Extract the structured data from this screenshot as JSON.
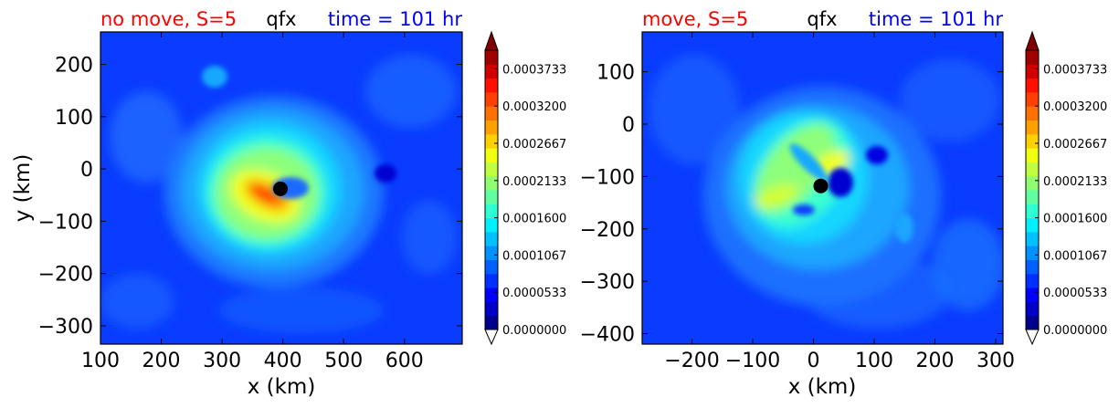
{
  "colors": {
    "title_left": "#ff0000",
    "title_center": "#000000",
    "title_right": "#0000ff",
    "background_field": "#0a3cff"
  },
  "chart_data": [
    {
      "type": "contourf",
      "title_left": "no move, S=5",
      "title_center": "qfx",
      "title_right": "time = 101 hr",
      "xlabel": "x (km)",
      "ylabel": "y (km)",
      "xlim": [
        100,
        695
      ],
      "ylim": [
        -335,
        262
      ],
      "xticks": [
        100,
        200,
        300,
        400,
        500,
        600
      ],
      "yticks": [
        200,
        100,
        0,
        -100,
        -200,
        -300
      ],
      "xtick_labels": [
        "100",
        "200",
        "300",
        "400",
        "500",
        "600"
      ],
      "ytick_labels": [
        "200",
        "100",
        "0",
        "−100",
        "−200",
        "−300"
      ],
      "center_marker": {
        "x": 396,
        "y": -38
      },
      "colorbar": {
        "min": 0.0,
        "max": 0.0004,
        "extend": "both",
        "tick_values": [
          0.0,
          5.33e-05,
          0.0001067,
          0.00016,
          0.0002133,
          0.0002667,
          0.00032,
          0.0003733
        ],
        "tick_labels": [
          "0.0000000",
          "0.0000533",
          "0.0001067",
          "0.0001600",
          "0.0002133",
          "0.0002667",
          "0.0003200",
          "0.0003733"
        ]
      }
    },
    {
      "type": "contourf",
      "title_left": "move, S=5",
      "title_center": "qfx",
      "title_right": "time = 101 hr",
      "xlabel": "x (km)",
      "ylabel": "",
      "xlim": [
        -282,
        312
      ],
      "ylim": [
        -420,
        176
      ],
      "xticks": [
        -200,
        -100,
        0,
        100,
        200,
        300
      ],
      "yticks": [
        100,
        0,
        -100,
        -200,
        -300,
        -400
      ],
      "xtick_labels": [
        "−200",
        "−100",
        "0",
        "100",
        "200",
        "300"
      ],
      "ytick_labels": [
        "100",
        "0",
        "−100",
        "−200",
        "−300",
        "−400"
      ],
      "center_marker": {
        "x": 12,
        "y": -118
      },
      "colorbar": {
        "min": 0.0,
        "max": 0.0004,
        "extend": "both",
        "tick_values": [
          0.0,
          5.33e-05,
          0.0001067,
          0.00016,
          0.0002133,
          0.0002667,
          0.00032,
          0.0003733
        ],
        "tick_labels": [
          "0.0000000",
          "0.0000533",
          "0.0001067",
          "0.0001600",
          "0.0002133",
          "0.0002667",
          "0.0003200",
          "0.0003733"
        ]
      }
    }
  ]
}
